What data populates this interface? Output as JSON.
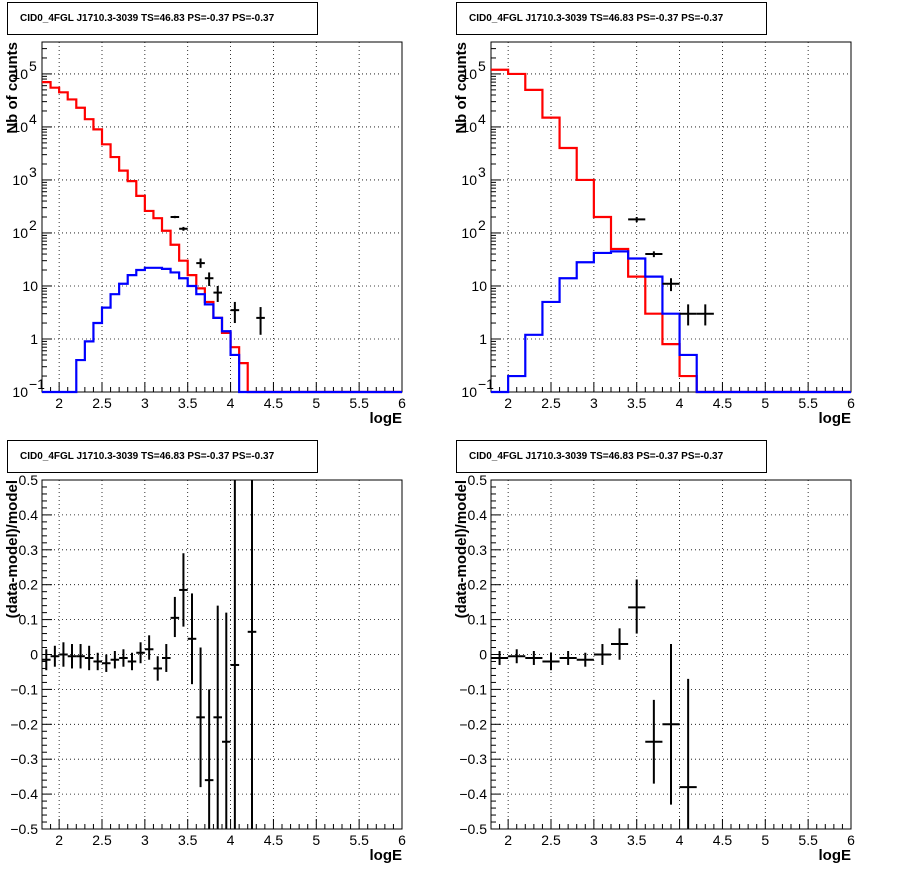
{
  "colors": {
    "model": "#ff0000",
    "source": "#0000ff",
    "data": "#000000",
    "grid": "#000000"
  },
  "chart_data": [
    {
      "panel": "top-left",
      "type": "histogram",
      "title": "CID0_4FGL J1710.3-3039 TS=46.83 PS=-0.37 PS=-0.37",
      "xlabel": "logE",
      "ylabel": "Nb of counts",
      "xlim": [
        1.8,
        6.0
      ],
      "ylim": [
        0.1,
        400000
      ],
      "yscale": "log",
      "grid": true,
      "xticks": [
        "2",
        "2.5",
        "3",
        "3.5",
        "4",
        "4.5",
        "5",
        "5.5",
        "6"
      ],
      "yticks": [
        {
          "value": 0.1,
          "base": "10",
          "exp": "−1"
        },
        {
          "value": 1,
          "base": "1",
          "exp": ""
        },
        {
          "value": 10,
          "base": "10",
          "exp": ""
        },
        {
          "value": 100,
          "base": "10",
          "exp": "2"
        },
        {
          "value": 1000,
          "base": "10",
          "exp": "3"
        },
        {
          "value": 10000,
          "base": "10",
          "exp": "4"
        },
        {
          "value": 100000,
          "base": "10",
          "exp": "5"
        }
      ],
      "bin_edges": [
        1.8,
        1.9,
        2.0,
        2.1,
        2.2,
        2.3,
        2.4,
        2.5,
        2.6,
        2.7,
        2.8,
        2.9,
        3.0,
        3.1,
        3.2,
        3.3,
        3.4,
        3.5,
        3.6,
        3.7,
        3.8,
        3.9,
        4.0,
        4.1,
        4.2,
        4.3,
        4.4,
        4.5,
        4.6,
        4.7,
        4.8,
        4.9,
        5.0,
        5.1,
        5.2,
        5.3,
        5.4,
        5.5,
        5.6,
        5.7,
        5.8,
        5.9,
        6.0
      ],
      "series": [
        {
          "name": "model",
          "color": "#ff0000",
          "values": [
            70000,
            55000,
            45000,
            33000,
            23000,
            14000,
            9000,
            4700,
            2700,
            1500,
            950,
            500,
            260,
            190,
            110,
            60,
            30,
            16,
            9,
            5,
            2.5,
            1.3,
            0.7,
            0.35,
            0.1,
            0.1,
            0.1,
            0.1,
            0.1,
            0.1,
            0.1,
            0.1,
            0.1,
            0.1,
            0.1,
            0.1,
            0.1,
            0.1,
            0.1,
            0.1,
            0.1,
            0.1
          ]
        },
        {
          "name": "source",
          "color": "#0000ff",
          "values": [
            0.1,
            0.1,
            0.1,
            0.1,
            0.4,
            0.9,
            2.0,
            3.9,
            7.0,
            11,
            16,
            20,
            22,
            22,
            21,
            18,
            14,
            10,
            7,
            4.5,
            2.5,
            1.4,
            0.5,
            0.1,
            0.1,
            0.1,
            0.1,
            0.1,
            0.1,
            0.1,
            0.1,
            0.1,
            0.1,
            0.1,
            0.1,
            0.1,
            0.1,
            0.1,
            0.1,
            0.1,
            0.1,
            0.1
          ]
        },
        {
          "name": "data",
          "color": "#000000",
          "points": [
            {
              "x": 3.35,
              "y": 200,
              "ylo": 190,
              "yhi": 210
            },
            {
              "x": 3.45,
              "y": 120,
              "ylo": 110,
              "yhi": 130
            },
            {
              "x": 3.65,
              "y": 27,
              "ylo": 22,
              "yhi": 33
            },
            {
              "x": 3.75,
              "y": 14,
              "ylo": 10,
              "yhi": 18
            },
            {
              "x": 3.85,
              "y": 7.5,
              "ylo": 5,
              "yhi": 10
            },
            {
              "x": 4.05,
              "y": 3.5,
              "ylo": 2,
              "yhi": 5
            },
            {
              "x": 4.35,
              "y": 2.5,
              "ylo": 1.2,
              "yhi": 4
            }
          ]
        }
      ]
    },
    {
      "panel": "top-right",
      "type": "histogram",
      "title": "CID0_4FGL J1710.3-3039 TS=46.83 PS=-0.37 PS=-0.37",
      "xlabel": "logE",
      "ylabel": "Nb of counts",
      "xlim": [
        1.8,
        6.0
      ],
      "ylim": [
        0.1,
        400000
      ],
      "yscale": "log",
      "grid": true,
      "xticks": [
        "2",
        "2.5",
        "3",
        "3.5",
        "4",
        "4.5",
        "5",
        "5.5",
        "6"
      ],
      "yticks": [
        {
          "value": 0.1,
          "base": "10",
          "exp": "−1"
        },
        {
          "value": 1,
          "base": "1",
          "exp": ""
        },
        {
          "value": 10,
          "base": "10",
          "exp": ""
        },
        {
          "value": 100,
          "base": "10",
          "exp": "2"
        },
        {
          "value": 1000,
          "base": "10",
          "exp": "3"
        },
        {
          "value": 10000,
          "base": "10",
          "exp": "4"
        },
        {
          "value": 100000,
          "base": "10",
          "exp": "5"
        }
      ],
      "bin_edges": [
        1.8,
        2.0,
        2.2,
        2.4,
        2.6,
        2.8,
        3.0,
        3.2,
        3.4,
        3.6,
        3.8,
        4.0,
        4.2,
        4.4,
        4.6,
        4.8,
        5.0,
        5.2,
        5.4,
        5.6,
        5.8,
        6.0
      ],
      "series": [
        {
          "name": "model",
          "color": "#ff0000",
          "values": [
            120000,
            100000,
            50000,
            15000,
            4000,
            1000,
            200,
            50,
            15,
            3,
            0.8,
            0.2,
            0.1,
            0.1,
            0.1,
            0.1,
            0.1,
            0.1,
            0.1,
            0.1,
            0.1
          ]
        },
        {
          "name": "source",
          "color": "#0000ff",
          "values": [
            0.1,
            0.2,
            1.2,
            5,
            14,
            28,
            42,
            45,
            33,
            15,
            3,
            0.5,
            0.1,
            0.1,
            0.1,
            0.1,
            0.1,
            0.1,
            0.1,
            0.1,
            0.1
          ]
        },
        {
          "name": "data",
          "color": "#000000",
          "points": [
            {
              "x": 3.5,
              "y": 180,
              "ylo": 160,
              "yhi": 200
            },
            {
              "x": 3.7,
              "y": 40,
              "ylo": 35,
              "yhi": 45
            },
            {
              "x": 3.9,
              "y": 11,
              "ylo": 8,
              "yhi": 14
            },
            {
              "x": 4.1,
              "y": 3,
              "ylo": 1.8,
              "yhi": 4.5
            },
            {
              "x": 4.3,
              "y": 3,
              "ylo": 1.8,
              "yhi": 4.5
            }
          ]
        }
      ]
    },
    {
      "panel": "bottom-left",
      "type": "scatter",
      "title": "CID0_4FGL J1710.3-3039 TS=46.83 PS=-0.37 PS=-0.37",
      "xlabel": "logE",
      "ylabel": "(data-model)/model",
      "xlim": [
        1.8,
        6.0
      ],
      "ylim": [
        -0.5,
        0.5
      ],
      "grid": true,
      "xticks": [
        "2",
        "2.5",
        "3",
        "3.5",
        "4",
        "4.5",
        "5",
        "5.5",
        "6"
      ],
      "yticks": [
        "−0.5",
        "−0.4",
        "−0.3",
        "−0.2",
        "−0.1",
        "0",
        "0.1",
        "0.2",
        "0.3",
        "0.4",
        "0.5"
      ],
      "xerr": 0.05,
      "points": [
        {
          "x": 1.85,
          "y": -0.015,
          "ylo": -0.045,
          "yhi": 0.015
        },
        {
          "x": 1.95,
          "y": -0.005,
          "ylo": -0.035,
          "yhi": 0.025
        },
        {
          "x": 2.05,
          "y": 0.0,
          "ylo": -0.035,
          "yhi": 0.035
        },
        {
          "x": 2.15,
          "y": -0.005,
          "ylo": -0.04,
          "yhi": 0.03
        },
        {
          "x": 2.25,
          "y": -0.005,
          "ylo": -0.04,
          "yhi": 0.03
        },
        {
          "x": 2.35,
          "y": -0.01,
          "ylo": -0.045,
          "yhi": 0.025
        },
        {
          "x": 2.45,
          "y": -0.02,
          "ylo": -0.045,
          "yhi": 0.005
        },
        {
          "x": 2.55,
          "y": -0.025,
          "ylo": -0.05,
          "yhi": 0.0
        },
        {
          "x": 2.65,
          "y": -0.015,
          "ylo": -0.04,
          "yhi": 0.01
        },
        {
          "x": 2.75,
          "y": -0.01,
          "ylo": -0.035,
          "yhi": 0.015
        },
        {
          "x": 2.85,
          "y": -0.02,
          "ylo": -0.045,
          "yhi": 0.005
        },
        {
          "x": 2.95,
          "y": 0.005,
          "ylo": -0.025,
          "yhi": 0.035
        },
        {
          "x": 3.05,
          "y": 0.015,
          "ylo": -0.015,
          "yhi": 0.055
        },
        {
          "x": 3.15,
          "y": -0.04,
          "ylo": -0.075,
          "yhi": -0.005
        },
        {
          "x": 3.25,
          "y": -0.01,
          "ylo": -0.05,
          "yhi": 0.03
        },
        {
          "x": 3.35,
          "y": 0.105,
          "ylo": 0.05,
          "yhi": 0.165
        },
        {
          "x": 3.45,
          "y": 0.185,
          "ylo": 0.08,
          "yhi": 0.29
        },
        {
          "x": 3.55,
          "y": 0.045,
          "ylo": -0.085,
          "yhi": 0.175
        },
        {
          "x": 3.65,
          "y": -0.18,
          "ylo": -0.38,
          "yhi": 0.02
        },
        {
          "x": 3.75,
          "y": -0.36,
          "ylo": -0.5,
          "yhi": -0.1
        },
        {
          "x": 3.85,
          "y": -0.18,
          "ylo": -0.5,
          "yhi": 0.14
        },
        {
          "x": 3.95,
          "y": -0.25,
          "ylo": -0.5,
          "yhi": 0.12
        },
        {
          "x": 4.05,
          "y": -0.03,
          "ylo": -0.5,
          "yhi": 0.5
        },
        {
          "x": 4.25,
          "y": 0.065,
          "ylo": -0.5,
          "yhi": 0.5
        }
      ]
    },
    {
      "panel": "bottom-right",
      "type": "scatter",
      "title": "CID0_4FGL J1710.3-3039 TS=46.83 PS=-0.37 PS=-0.37",
      "xlabel": "logE",
      "ylabel": "(data-model)/model",
      "xlim": [
        1.8,
        6.0
      ],
      "ylim": [
        -0.5,
        0.5
      ],
      "grid": true,
      "xticks": [
        "2",
        "2.5",
        "3",
        "3.5",
        "4",
        "4.5",
        "5",
        "5.5",
        "6"
      ],
      "yticks": [
        "−0.5",
        "−0.4",
        "−0.3",
        "−0.2",
        "−0.1",
        "0",
        "0.1",
        "0.2",
        "0.3",
        "0.4",
        "0.5"
      ],
      "xerr": 0.1,
      "points": [
        {
          "x": 1.9,
          "y": -0.01,
          "ylo": -0.03,
          "yhi": 0.01
        },
        {
          "x": 2.1,
          "y": -0.005,
          "ylo": -0.025,
          "yhi": 0.015
        },
        {
          "x": 2.3,
          "y": -0.01,
          "ylo": -0.03,
          "yhi": 0.01
        },
        {
          "x": 2.5,
          "y": -0.02,
          "ylo": -0.045,
          "yhi": 0.005
        },
        {
          "x": 2.7,
          "y": -0.01,
          "ylo": -0.03,
          "yhi": 0.01
        },
        {
          "x": 2.9,
          "y": -0.015,
          "ylo": -0.035,
          "yhi": 0.005
        },
        {
          "x": 3.1,
          "y": 0.0,
          "ylo": -0.03,
          "yhi": 0.03
        },
        {
          "x": 3.3,
          "y": 0.03,
          "ylo": -0.015,
          "yhi": 0.075
        },
        {
          "x": 3.5,
          "y": 0.135,
          "ylo": 0.06,
          "yhi": 0.215
        },
        {
          "x": 3.7,
          "y": -0.25,
          "ylo": -0.37,
          "yhi": -0.13
        },
        {
          "x": 3.9,
          "y": -0.2,
          "ylo": -0.43,
          "yhi": 0.03
        },
        {
          "x": 4.1,
          "y": -0.38,
          "ylo": -0.5,
          "yhi": -0.07
        }
      ]
    }
  ]
}
